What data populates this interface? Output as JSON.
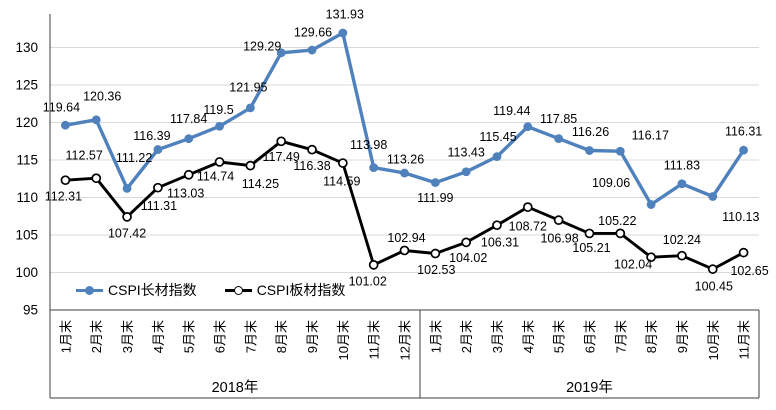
{
  "chart_data": {
    "type": "line",
    "title": "",
    "grid": true,
    "background": "#ffffff",
    "gridline_color": "#d9d9d9",
    "border_color": "#3f3f3f",
    "y_axis": {
      "min": 95,
      "max": 133.5,
      "ticks": [
        95,
        100,
        105,
        110,
        115,
        120,
        125,
        130
      ]
    },
    "x_axis": {
      "groups": [
        {
          "label": "2018年",
          "months": [
            "1月末",
            "2月末",
            "3月末",
            "4月末",
            "5月末",
            "6月末",
            "7月末",
            "8月末",
            "9月末",
            "10月末",
            "11月末",
            "12月末"
          ]
        },
        {
          "label": "2019年",
          "months": [
            "1月末",
            "2月末",
            "3月末",
            "4月末",
            "5月末",
            "6月末",
            "7月末",
            "8月末",
            "9月末",
            "10月末",
            "11月末"
          ]
        }
      ]
    },
    "legend_position": "bottom-left-inside",
    "series": [
      {
        "key": "long",
        "name": "CSPI长材指数",
        "color": "#4f81bd",
        "marker": "filled-circle",
        "values": [
          119.64,
          120.36,
          111.22,
          116.39,
          117.84,
          119.5,
          121.95,
          129.29,
          129.66,
          131.93,
          113.98,
          113.26,
          111.99,
          113.43,
          115.45,
          119.44,
          117.85,
          116.26,
          116.17,
          109.06,
          111.83,
          110.13,
          116.31
        ],
        "label_offsets": [
          [
            -4,
            -18
          ],
          [
            6,
            -24
          ],
          [
            7,
            -31
          ],
          [
            -6,
            -14
          ],
          [
            0,
            -20
          ],
          [
            -1,
            -17
          ],
          [
            -2,
            -21
          ],
          [
            -19,
            -7
          ],
          [
            1,
            -18
          ],
          [
            2,
            -19
          ],
          [
            -5,
            -23
          ],
          [
            1,
            -14
          ],
          [
            0,
            15
          ],
          [
            0,
            -20
          ],
          [
            1,
            -20
          ],
          [
            -16,
            -16
          ],
          [
            0,
            -20
          ],
          [
            1,
            -19
          ],
          [
            30,
            -16
          ],
          [
            -40,
            -22
          ],
          [
            0,
            -19
          ],
          [
            28,
            20
          ],
          [
            0,
            -19
          ]
        ]
      },
      {
        "key": "plate",
        "name": "CSPI板材指数",
        "color": "#000000",
        "marker": "open-circle",
        "values": [
          112.31,
          112.57,
          107.42,
          111.31,
          113.03,
          114.74,
          114.25,
          117.49,
          116.38,
          114.59,
          101.02,
          102.94,
          102.53,
          104.02,
          106.31,
          108.72,
          106.98,
          105.21,
          105.22,
          102.04,
          102.24,
          100.45,
          102.65
        ],
        "label_offsets": [
          [
            -2,
            16
          ],
          [
            -12,
            -23
          ],
          [
            0,
            16
          ],
          [
            1,
            18
          ],
          [
            -3,
            18
          ],
          [
            -4,
            14
          ],
          [
            10,
            18
          ],
          [
            0,
            15
          ],
          [
            0,
            16
          ],
          [
            -1,
            18
          ],
          [
            -6,
            16
          ],
          [
            2,
            -13
          ],
          [
            1,
            16
          ],
          [
            2,
            15
          ],
          [
            3,
            17
          ],
          [
            0,
            19
          ],
          [
            1,
            18
          ],
          [
            2,
            14
          ],
          [
            -3,
            -13
          ],
          [
            -18,
            7
          ],
          [
            0,
            -16
          ],
          [
            1,
            17
          ],
          [
            6,
            18
          ]
        ]
      }
    ]
  }
}
